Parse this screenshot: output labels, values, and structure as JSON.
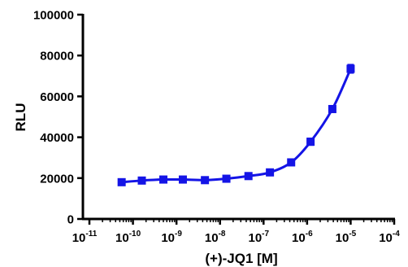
{
  "chart_data": {
    "type": "scatter",
    "title": "",
    "xlabel": "(+)-JQ1 [M]",
    "ylabel": "RLU",
    "x_scale": "log",
    "xlim": [
      1e-11,
      0.0001
    ],
    "ylim": [
      0,
      100000
    ],
    "grid": false,
    "legend": "none",
    "x_ticks": [
      {
        "base": "10",
        "exp": "-11",
        "value": 1e-11
      },
      {
        "base": "10",
        "exp": "-10",
        "value": 1e-10
      },
      {
        "base": "10",
        "exp": "-9",
        "value": 1e-09
      },
      {
        "base": "10",
        "exp": "-8",
        "value": 1e-08
      },
      {
        "base": "10",
        "exp": "-7",
        "value": 1e-07
      },
      {
        "base": "10",
        "exp": "-6",
        "value": 1e-06
      },
      {
        "base": "10",
        "exp": "-5",
        "value": 1e-05
      },
      {
        "base": "10",
        "exp": "-4",
        "value": 0.0001
      }
    ],
    "y_ticks": [
      {
        "label": "0",
        "value": 0
      },
      {
        "label": "20000",
        "value": 20000
      },
      {
        "label": "40000",
        "value": 40000
      },
      {
        "label": "60000",
        "value": 60000
      },
      {
        "label": "80000",
        "value": 80000
      },
      {
        "label": "100000",
        "value": 100000
      }
    ],
    "series": [
      {
        "color": "#1414e6",
        "marker": "square",
        "fit": "dose-response curve",
        "points": [
          {
            "x": 5.5e-11,
            "y": 18000,
            "err": 600
          },
          {
            "x": 1.6e-10,
            "y": 18800,
            "err": 500
          },
          {
            "x": 5e-10,
            "y": 19300,
            "err": 500
          },
          {
            "x": 1.4e-09,
            "y": 19300,
            "err": 500
          },
          {
            "x": 4.5e-09,
            "y": 19000,
            "err": 500
          },
          {
            "x": 1.4e-08,
            "y": 19700,
            "err": 500
          },
          {
            "x": 4.5e-08,
            "y": 21000,
            "err": 600
          },
          {
            "x": 1.4e-07,
            "y": 22800,
            "err": 700
          },
          {
            "x": 4.3e-07,
            "y": 27700,
            "err": 900
          },
          {
            "x": 1.2e-06,
            "y": 37800,
            "err": 1600
          },
          {
            "x": 3.8e-06,
            "y": 53800,
            "err": 900
          },
          {
            "x": 1e-05,
            "y": 73500,
            "err": 2000
          }
        ]
      }
    ]
  }
}
